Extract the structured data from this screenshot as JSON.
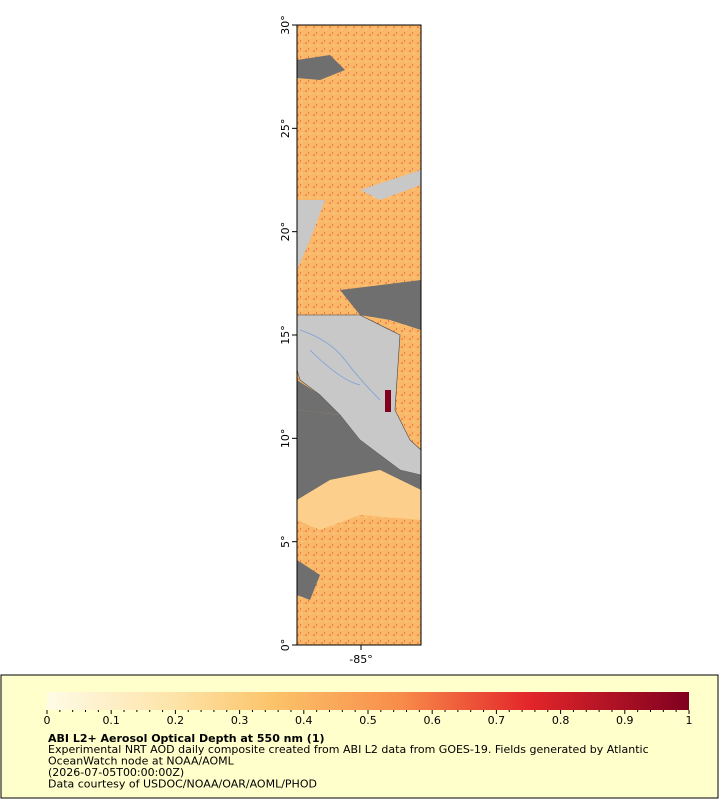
{
  "map": {
    "lat_ticks": [
      "0°",
      "5°",
      "10°",
      "15°",
      "20°",
      "25°",
      "30°"
    ],
    "lon_ticks": [
      "-85°"
    ]
  },
  "legend": {
    "colorbar_ticks": [
      "0",
      "0.1",
      "0.2",
      "0.3",
      "0.4",
      "0.5",
      "0.6",
      "0.7",
      "0.8",
      "0.9",
      "1"
    ],
    "title": "ABI L2+ Aerosol Optical Depth at 550 nm (1)",
    "lines": [
      "Experimental NRT AOD daily composite created from ABI L2 data from GOES-19. Fields generated by Atlantic",
      "OceanWatch node at NOAA/AOML",
      "(2026-07-05T00:00:00Z)",
      "Data courtesy of USDOC/NOAA/OAR/AOML/PHOD"
    ]
  }
}
